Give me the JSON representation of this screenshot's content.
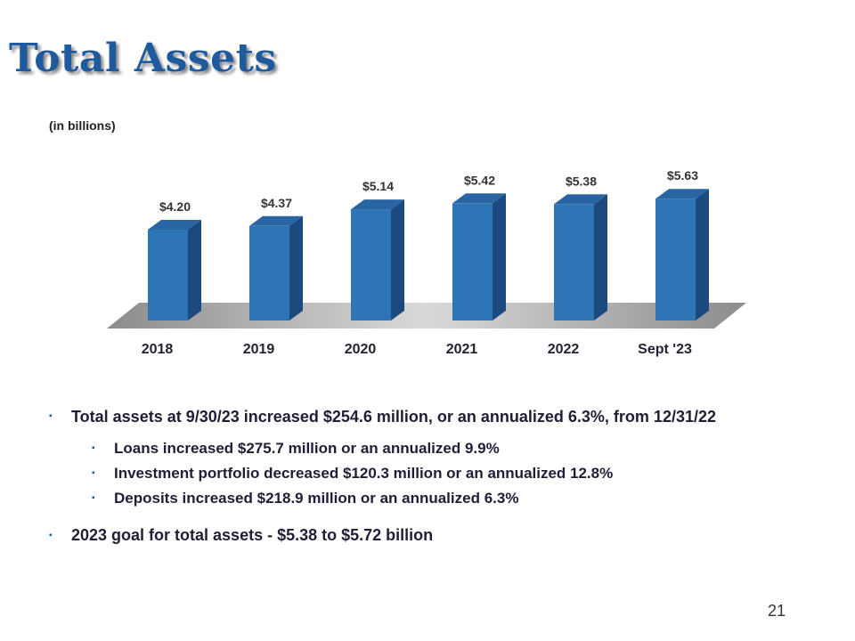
{
  "slide": {
    "title": "Total Assets",
    "units_note": "(in billions)",
    "page_number": "21"
  },
  "chart_data": {
    "type": "bar",
    "title": "Total Assets",
    "ylabel": "(in billions)",
    "categories": [
      "2018",
      "2019",
      "2020",
      "2021",
      "2022",
      "Sept '23"
    ],
    "values": [
      4.2,
      4.37,
      5.14,
      5.42,
      5.38,
      5.63
    ],
    "labels": [
      "$4.20",
      "$4.37",
      "$5.14",
      "$5.42",
      "$5.38",
      "$5.63"
    ],
    "ylim": [
      0,
      6
    ],
    "grid": false,
    "legend": "none",
    "bar_color": "#2e75b6",
    "bar_side_color": "#1d4a7e",
    "floor_color": "#a6a6a6"
  },
  "bullets": {
    "b1": "Total assets at 9/30/23 increased $254.6 million, or an annualized 6.3%, from 12/31/22",
    "sub": [
      "Loans increased $275.7 million or an annualized 9.9%",
      "Investment portfolio decreased $120.3 million or an annualized 12.8%",
      "Deposits increased $218.9 million or an annualized 6.3%"
    ],
    "b2": "2023 goal for total assets - $5.38 to $5.72 billion",
    "marker": "▪"
  }
}
